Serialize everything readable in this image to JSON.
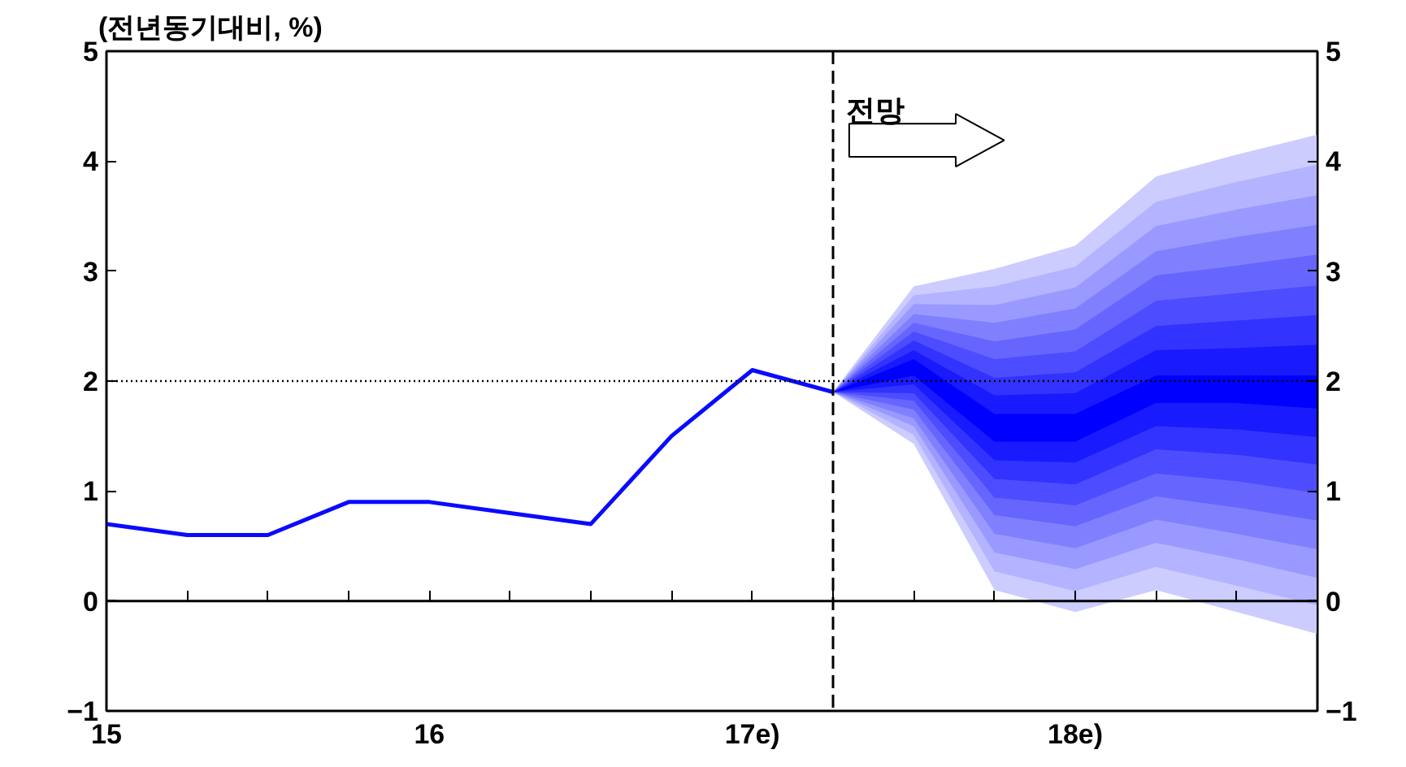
{
  "chart_data": {
    "type": "line",
    "ylabel": "(전년동기대비, %)",
    "annotations": [
      "전망"
    ],
    "xlim": [
      "2015-01",
      "2018-10"
    ],
    "xticks": [
      {
        "value": "2015-01",
        "label": "15"
      },
      {
        "value": "2015-04",
        "label": null
      },
      {
        "value": "2015-07",
        "label": null
      },
      {
        "value": "2015-10",
        "label": null
      },
      {
        "value": "2016-01",
        "label": "16"
      },
      {
        "value": "2016-04",
        "label": null
      },
      {
        "value": "2016-07",
        "label": null
      },
      {
        "value": "2016-10",
        "label": null
      },
      {
        "value": "2017-01",
        "label": "17e)"
      },
      {
        "value": "2017-04",
        "label": null
      },
      {
        "value": "2017-07",
        "label": null
      },
      {
        "value": "2017-10",
        "label": null
      },
      {
        "value": "2018-01",
        "label": "18e)"
      },
      {
        "value": "2018-04",
        "label": null
      },
      {
        "value": "2018-07",
        "label": null
      },
      {
        "value": "2018-10",
        "label": null
      }
    ],
    "ylim": [
      -1,
      5
    ],
    "yticks": [
      -1,
      0,
      1,
      2,
      3,
      4,
      5
    ],
    "y2lim": [
      -1,
      5
    ],
    "y2ticks": [
      -1,
      0,
      1,
      2,
      3,
      4,
      5
    ],
    "ref_lines": [
      {
        "axis": "y",
        "value": 2,
        "line_style": "dotted",
        "color": "#000000"
      },
      {
        "axis": "y",
        "value": 0,
        "line_style": "solid",
        "color": "#000000"
      },
      {
        "axis": "x",
        "value": "2017-04",
        "line_style": "dashed",
        "color": "#000000"
      }
    ],
    "series": [
      {
        "color": "#ccccff",
        "x": [
          "2017-04",
          "2017-07",
          "2017-10",
          "2018-01",
          "2018-04",
          "2018-07",
          "2018-10"
        ],
        "values": [
          null,
          null,
          null,
          null,
          null,
          null,
          null
        ],
        "lower": [
          1.9,
          1.43,
          0.1,
          -0.1,
          0.1,
          -0.1,
          -0.3
        ],
        "upper": [
          1.9,
          2.86,
          3.02,
          3.23,
          3.86,
          4.06,
          4.24
        ]
      },
      {
        "color": "#b3b3ff",
        "x": [
          "2017-04",
          "2017-07",
          "2017-10",
          "2018-01",
          "2018-04",
          "2018-07",
          "2018-10"
        ],
        "values": [
          null,
          null,
          null,
          null,
          null,
          null,
          null
        ],
        "lower": [
          1.9,
          1.51,
          0.27,
          0.09,
          0.31,
          0.14,
          -0.04
        ],
        "upper": [
          1.9,
          2.78,
          2.86,
          3.04,
          3.63,
          3.81,
          3.97
        ]
      },
      {
        "color": "#9999ff",
        "x": [
          "2017-04",
          "2017-07",
          "2017-10",
          "2018-01",
          "2018-04",
          "2018-07",
          "2018-10"
        ],
        "values": [
          null,
          null,
          null,
          null,
          null,
          null,
          null
        ],
        "lower": [
          1.9,
          1.59,
          0.44,
          0.29,
          0.53,
          0.38,
          0.21
        ],
        "upper": [
          1.9,
          2.7,
          2.69,
          2.85,
          3.41,
          3.56,
          3.69
        ]
      },
      {
        "color": "#8080ff",
        "x": [
          "2017-04",
          "2017-07",
          "2017-10",
          "2018-01",
          "2018-04",
          "2018-07",
          "2018-10"
        ],
        "values": [
          null,
          null,
          null,
          null,
          null,
          null,
          null
        ],
        "lower": [
          1.9,
          1.66,
          0.61,
          0.48,
          0.74,
          0.61,
          0.47
        ],
        "upper": [
          1.9,
          2.61,
          2.53,
          2.66,
          3.18,
          3.31,
          3.42
        ]
      },
      {
        "color": "#6666ff",
        "x": [
          "2017-04",
          "2017-07",
          "2017-10",
          "2018-01",
          "2018-04",
          "2018-07",
          "2018-10"
        ],
        "values": [
          null,
          null,
          null,
          null,
          null,
          null,
          null
        ],
        "lower": [
          1.9,
          1.74,
          0.78,
          0.68,
          0.95,
          0.85,
          0.73
        ],
        "upper": [
          1.9,
          2.53,
          2.36,
          2.47,
          2.96,
          3.05,
          3.15
        ]
      },
      {
        "color": "#4d4dff",
        "x": [
          "2017-04",
          "2017-07",
          "2017-10",
          "2018-01",
          "2018-04",
          "2018-07",
          "2018-10"
        ],
        "values": [
          null,
          null,
          null,
          null,
          null,
          null,
          null
        ],
        "lower": [
          1.9,
          1.82,
          0.94,
          0.87,
          1.16,
          1.09,
          0.98
        ],
        "upper": [
          1.9,
          2.45,
          2.2,
          2.27,
          2.73,
          2.8,
          2.87
        ]
      },
      {
        "color": "#3333ff",
        "x": [
          "2017-04",
          "2017-07",
          "2017-10",
          "2018-01",
          "2018-04",
          "2018-07",
          "2018-10"
        ],
        "values": [
          null,
          null,
          null,
          null,
          null,
          null,
          null
        ],
        "lower": [
          1.9,
          1.89,
          1.11,
          1.06,
          1.38,
          1.33,
          1.24
        ],
        "upper": [
          1.9,
          2.37,
          2.03,
          2.08,
          2.5,
          2.55,
          2.6
        ]
      },
      {
        "color": "#1a1aff",
        "x": [
          "2017-04",
          "2017-07",
          "2017-10",
          "2018-01",
          "2018-04",
          "2018-07",
          "2018-10"
        ],
        "values": [
          null,
          null,
          null,
          null,
          null,
          null,
          null
        ],
        "lower": [
          1.9,
          1.97,
          1.28,
          1.26,
          1.59,
          1.56,
          1.49
        ],
        "upper": [
          1.9,
          2.28,
          1.87,
          1.89,
          2.28,
          2.3,
          2.33
        ]
      },
      {
        "color": "#0000ff",
        "x": [
          "2017-04",
          "2017-07",
          "2017-10",
          "2018-01",
          "2018-04",
          "2018-07",
          "2018-10"
        ],
        "values": [
          null,
          null,
          null,
          null,
          null,
          null,
          null
        ],
        "lower": [
          1.9,
          2.05,
          1.45,
          1.45,
          1.8,
          1.8,
          1.75
        ],
        "upper": [
          1.9,
          2.2,
          1.7,
          1.7,
          2.05,
          2.05,
          2.05
        ]
      },
      {
        "color": "#0a0aff",
        "x": [
          "2015-01",
          "2015-04",
          "2015-07",
          "2015-10",
          "2016-01",
          "2016-04",
          "2016-07",
          "2016-10",
          "2017-01",
          "2017-04"
        ],
        "values": [
          0.7,
          0.6,
          0.6,
          0.9,
          0.9,
          0.8,
          0.7,
          1.5,
          2.1,
          1.9
        ]
      }
    ]
  }
}
